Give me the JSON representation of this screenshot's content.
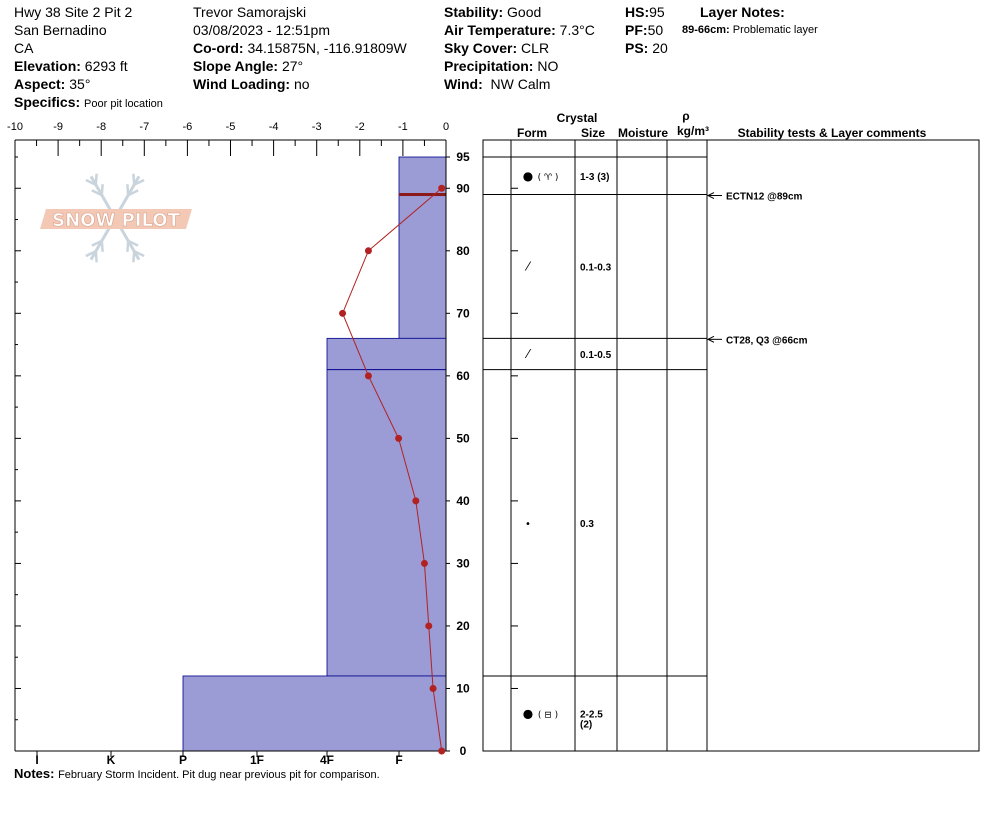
{
  "header": {
    "site": "Hwy 38 Site 2 Pit 2",
    "region": "San Bernadino",
    "state": "CA",
    "elevation_label": "Elevation:",
    "elevation": "6293 ft",
    "aspect_label": "Aspect:",
    "aspect": "35°",
    "specifics_label": "Specifics:",
    "specifics": "Poor pit location",
    "observer": "Trevor Samorajski",
    "datetime": "03/08/2023 - 12:51pm",
    "coord_label": "Co-ord:",
    "coord": "34.15875N, -116.91809W",
    "slope_label": "Slope Angle:",
    "slope": "27°",
    "wind_loading_label": "Wind Loading:",
    "wind_loading": "no",
    "stability_label": "Stability:",
    "stability": "Good",
    "air_temp_label": "Air Temperature:",
    "air_temp": "7.3°C",
    "sky_label": "Sky Cover:",
    "sky": "CLR",
    "precip_label": "Precipitation:",
    "precip": "NO",
    "wind_label": "Wind:",
    "wind": "NW Calm",
    "hs_label": "HS:",
    "hs": "95",
    "pf_label": "PF:",
    "pf": "50",
    "ps_label": "PS:",
    "ps": "20",
    "layer_notes_title": "Layer Notes:",
    "layer_note_range": "89-66cm:",
    "layer_note_text": "Problematic layer"
  },
  "logo_text": "SNOW PILOT",
  "notes": {
    "label": "Notes:",
    "text": "February Storm Incident. Pit dug near previous pit for comparison."
  },
  "colors": {
    "hardness_fill": "#9b9bd6",
    "hardness_edge": "#00008b",
    "temp_line": "#b22222",
    "layer_marker": "#8b1a1a"
  },
  "chart_data": {
    "type": "snow-profile",
    "depth_axis": {
      "min": 0,
      "max": 95,
      "ticks": [
        0,
        10,
        20,
        30,
        40,
        50,
        60,
        70,
        80,
        90,
        95
      ]
    },
    "temp_axis": {
      "min": -10,
      "max": 0,
      "ticks": [
        "-10",
        "-9",
        "-8",
        "-7",
        "-6",
        "-5",
        "-4",
        "-3",
        "-2",
        "-1",
        "0"
      ]
    },
    "hardness_labels": [
      "I",
      "K",
      "P",
      "1F",
      "4F",
      "F"
    ],
    "temperature_profile": [
      {
        "depth": 90,
        "temp": -0.1
      },
      {
        "depth": 80,
        "temp": -1.8
      },
      {
        "depth": 70,
        "temp": -2.4
      },
      {
        "depth": 60,
        "temp": -1.8
      },
      {
        "depth": 50,
        "temp": -1.1
      },
      {
        "depth": 40,
        "temp": -0.7
      },
      {
        "depth": 30,
        "temp": -0.5
      },
      {
        "depth": 20,
        "temp": -0.4
      },
      {
        "depth": 10,
        "temp": -0.3
      },
      {
        "depth": 0,
        "temp": -0.1
      }
    ],
    "hardness_layers": [
      {
        "top": 95,
        "bottom": 66,
        "hardness": "F"
      },
      {
        "top": 66,
        "bottom": 12,
        "hardness": "4F"
      },
      {
        "top": 12,
        "bottom": 0,
        "hardness": "P"
      }
    ],
    "layer_boundaries": [
      95,
      89,
      66,
      61,
      12
    ],
    "problem_layer_depth": 89,
    "table_headers": {
      "crystal": "Crystal",
      "form": "Form",
      "size": "Size",
      "moisture": "Moisture",
      "density": "ρ",
      "density_unit": "kg/m³",
      "stability": "Stability tests & Layer comments"
    },
    "layers": [
      {
        "top": 95,
        "bottom": 89,
        "form_symbol": "●",
        "form_secondary": "( ♈ )",
        "size": "1-3 (3)"
      },
      {
        "top": 89,
        "bottom": 66,
        "form_symbol": "⁄",
        "form_secondary": "",
        "size": "0.1-0.3"
      },
      {
        "top": 66,
        "bottom": 61,
        "form_symbol": "⁄",
        "form_secondary": "",
        "size": "0.1-0.5"
      },
      {
        "top": 61,
        "bottom": 12,
        "form_symbol": "•",
        "form_secondary": "",
        "size": "0.3"
      },
      {
        "top": 12,
        "bottom": 0,
        "form_symbol": "●",
        "form_secondary": "( ⊟ )",
        "size": "2-2.5",
        "size_line2": "(2)"
      }
    ],
    "stability_tests": [
      {
        "depth": 89,
        "text": "ECTN12 @89cm"
      },
      {
        "depth": 66,
        "text": "CT28, Q3 @66cm"
      }
    ]
  }
}
